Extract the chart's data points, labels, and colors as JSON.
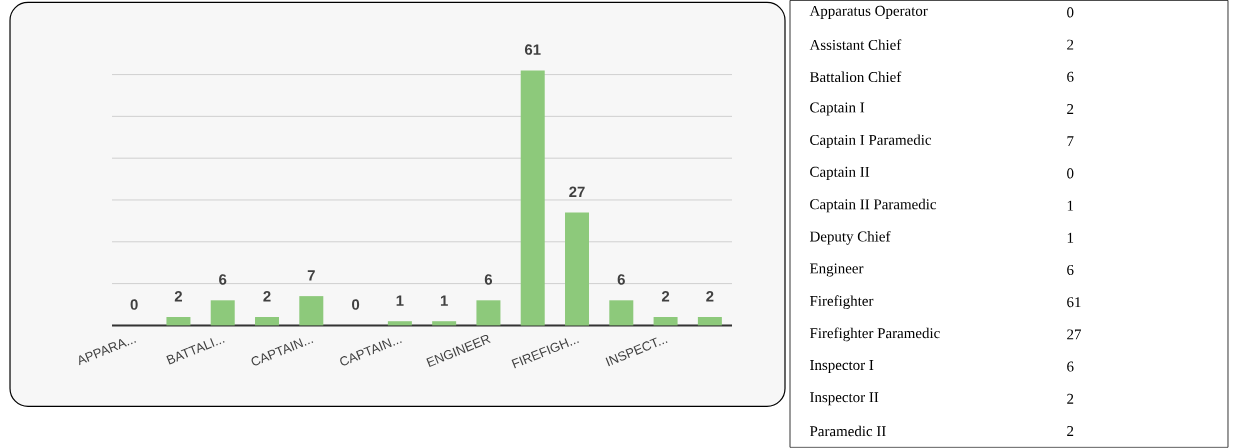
{
  "chart_data": [
    {
      "type": "bar",
      "categories": [
        "APPARA...",
        null,
        "BATTALI...",
        null,
        "CAPTAIN...",
        null,
        "CAPTAIN...",
        null,
        "ENGINEER",
        null,
        "FIREFIGH...",
        null,
        "INSPECT...",
        null
      ],
      "values": [
        0,
        2,
        6,
        2,
        7,
        0,
        1,
        1,
        6,
        61,
        27,
        6,
        2,
        2
      ],
      "color": "#8dc97b",
      "data_labels": true,
      "grid": "y",
      "tick_labels": "x"
    },
    {
      "type": "other",
      "categories": [
        "Apparatus Operator",
        "Assistant Chief",
        "Battalion Chief",
        "Captain I",
        "Captain I Paramedic",
        "Captain II",
        "Captain II Paramedic",
        "Deputy Chief",
        "Engineer",
        "Firefighter",
        "Firefighter Paramedic",
        "Inspector I",
        "Inspector II",
        "Paramedic II"
      ],
      "values": [
        0,
        2,
        6,
        2,
        7,
        0,
        1,
        1,
        6,
        61,
        27,
        6,
        2,
        2
      ],
      "data_labels": true
    }
  ]
}
